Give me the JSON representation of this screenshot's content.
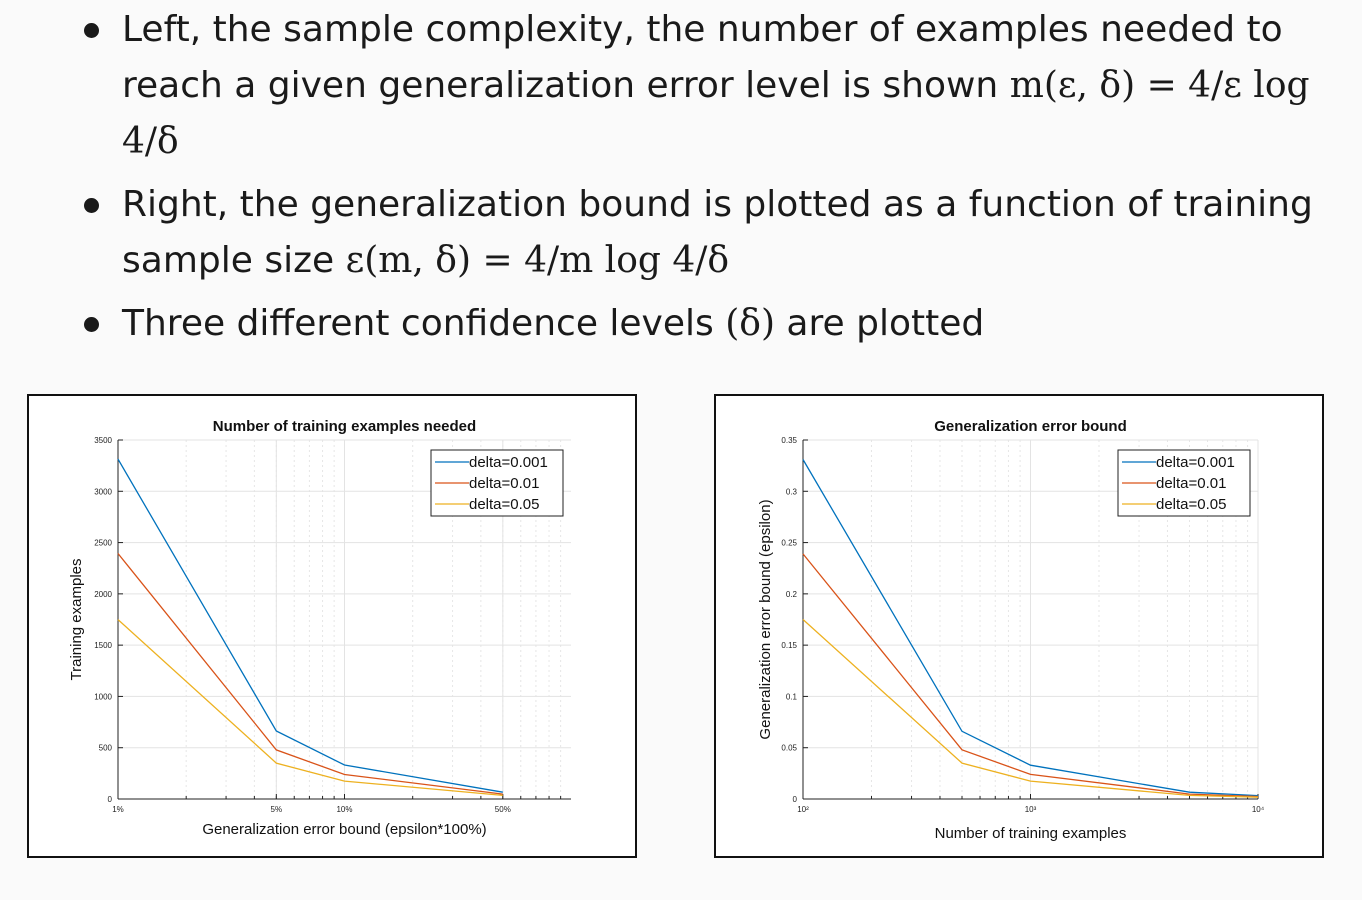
{
  "bullets": [
    {
      "line1": "Left, the sample complexity, the number of examples needed to",
      "line2_text": "reach a given generalization error level is shown ",
      "line2_math": "m(ε, δ) = 4/ε log 4/δ"
    },
    {
      "line1": "Right, the generalization bound is plotted as a function of training",
      "line2_text": "sample size ",
      "line2_math": "ε(m, δ) = 4/m log 4/δ"
    },
    {
      "line1_text": "Three different confidence levels ",
      "line1_math": "(δ)",
      "line1_tail": " are plotted"
    }
  ],
  "colors": {
    "delta_0_001": "#0072BD",
    "delta_0_01": "#D95319",
    "delta_0_05": "#EDB120"
  },
  "chart_data": [
    {
      "type": "line",
      "title": "Number of training examples needed",
      "xlabel": "Generalization error bound (epsilon*100%)",
      "ylabel": "Training examples",
      "xscale": "log",
      "xlim": [
        0.01,
        1.0
      ],
      "ylim": [
        0,
        3500
      ],
      "grid": true,
      "legend_position": "top-right",
      "x_tick_labels": [
        "1%",
        "5%",
        "10%",
        "50%"
      ],
      "x_tick_values": [
        0.01,
        0.05,
        0.1,
        0.5
      ],
      "y_ticks": [
        0,
        500,
        1000,
        1500,
        2000,
        2500,
        3000,
        3500
      ],
      "x": [
        0.01,
        0.05,
        0.1,
        0.5
      ],
      "series": [
        {
          "name": "delta=0.001",
          "color": "#0072BD",
          "values": [
            3314,
            663,
            331,
            66
          ]
        },
        {
          "name": "delta=0.01",
          "color": "#D95319",
          "values": [
            2393,
            479,
            239,
            48
          ]
        },
        {
          "name": "delta=0.05",
          "color": "#EDB120",
          "values": [
            1749,
            350,
            175,
            35
          ]
        }
      ]
    },
    {
      "type": "line",
      "title": "Generalization error bound",
      "xlabel": "Number of training examples",
      "ylabel": "Generalization error bound (epsilon)",
      "xscale": "log",
      "xlim": [
        100,
        10000
      ],
      "ylim": [
        0,
        0.35
      ],
      "grid": true,
      "legend_position": "top-right",
      "x_tick_labels": [
        "10²",
        "10³",
        "10⁴"
      ],
      "x_tick_values": [
        100,
        1000,
        10000
      ],
      "y_ticks": [
        0,
        0.05,
        0.1,
        0.15,
        0.2,
        0.25,
        0.3,
        0.35
      ],
      "y_tick_labels": [
        "0",
        "0.05",
        "0.1",
        "0.15",
        "0.2",
        "0.25",
        "0.3",
        "0.35"
      ],
      "x": [
        100,
        500,
        1000,
        5000,
        10000
      ],
      "series": [
        {
          "name": "delta=0.001",
          "color": "#0072BD",
          "values": [
            0.331,
            0.066,
            0.033,
            0.0066,
            0.0033
          ]
        },
        {
          "name": "delta=0.01",
          "color": "#D95319",
          "values": [
            0.239,
            0.048,
            0.024,
            0.0048,
            0.0024
          ]
        },
        {
          "name": "delta=0.05",
          "color": "#EDB120",
          "values": [
            0.175,
            0.035,
            0.0175,
            0.0035,
            0.00175
          ]
        }
      ]
    }
  ]
}
